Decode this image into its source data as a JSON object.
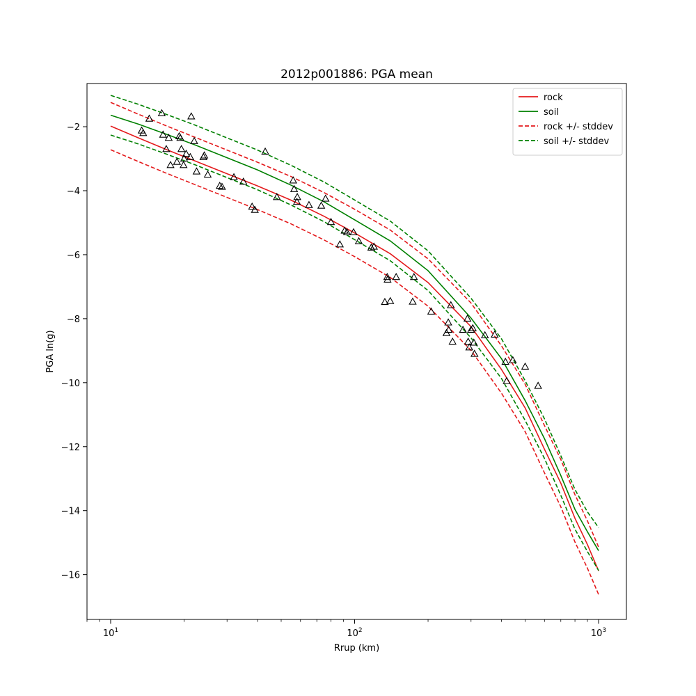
{
  "chart_data": {
    "type": "scatter",
    "title": "2012p001886: PGA mean",
    "xlabel": "Rrup (km)",
    "ylabel": "PGA ln(g)",
    "x_scale": "log",
    "xlim": [
      8,
      1300
    ],
    "ylim": [
      -17.4,
      -0.65
    ],
    "grid": false,
    "legend_position": "top-right",
    "x_ticks": [
      {
        "value": 10,
        "base": "10",
        "exp": "1"
      },
      {
        "value": 100,
        "base": "10",
        "exp": "2"
      },
      {
        "value": 1000,
        "base": "10",
        "exp": "3"
      }
    ],
    "y_ticks": [
      {
        "value": -2,
        "label": "−2"
      },
      {
        "value": -4,
        "label": "−4"
      },
      {
        "value": -6,
        "label": "−6"
      },
      {
        "value": -8,
        "label": "−8"
      },
      {
        "value": -10,
        "label": "−10"
      },
      {
        "value": -12,
        "label": "−12"
      },
      {
        "value": -14,
        "label": "−14"
      },
      {
        "value": -16,
        "label": "−16"
      }
    ],
    "series": [
      {
        "name": "rock",
        "color": "#e41a1c",
        "dash": false,
        "x": [
          10,
          13,
          17,
          22,
          30,
          40,
          55,
          75,
          100,
          140,
          200,
          300,
          400,
          500,
          600,
          700,
          800,
          900,
          1000
        ],
        "y": [
          -1.98,
          -2.35,
          -2.72,
          -3.06,
          -3.47,
          -3.85,
          -4.3,
          -4.8,
          -5.32,
          -5.97,
          -6.87,
          -8.25,
          -9.59,
          -10.79,
          -12.08,
          -13.14,
          -14.24,
          -15.06,
          -15.88
        ]
      },
      {
        "name": "soil",
        "color": "#008000",
        "dash": false,
        "x": [
          10,
          13,
          17,
          22,
          30,
          40,
          55,
          75,
          100,
          140,
          200,
          300,
          400,
          500,
          600,
          700,
          800,
          900,
          1000
        ],
        "y": [
          -1.64,
          -1.92,
          -2.24,
          -2.56,
          -2.97,
          -3.35,
          -3.83,
          -4.35,
          -4.91,
          -5.57,
          -6.5,
          -7.98,
          -9.25,
          -10.56,
          -11.75,
          -12.9,
          -13.96,
          -14.66,
          -15.25
        ]
      },
      {
        "name": "rock +/- stddev",
        "color": "#e41a1c",
        "dash": true,
        "x": [
          10,
          13,
          17,
          22,
          30,
          40,
          55,
          75,
          100,
          140,
          200,
          300,
          400,
          500,
          600,
          700,
          800,
          900,
          1000
        ],
        "y": [
          -1.24,
          -1.61,
          -1.98,
          -2.32,
          -2.73,
          -3.11,
          -3.56,
          -4.06,
          -4.58,
          -5.23,
          -6.13,
          -7.51,
          -8.85,
          -10.05,
          -11.34,
          -12.4,
          -13.5,
          -14.32,
          -15.14
        ]
      },
      {
        "name": "rock +/- stddev",
        "color": "#e41a1c",
        "dash": true,
        "legend": false,
        "x": [
          10,
          13,
          17,
          22,
          30,
          40,
          55,
          75,
          100,
          140,
          200,
          300,
          400,
          500,
          600,
          700,
          800,
          900,
          1000
        ],
        "y": [
          -2.72,
          -3.09,
          -3.46,
          -3.8,
          -4.21,
          -4.59,
          -5.04,
          -5.54,
          -6.06,
          -6.71,
          -7.61,
          -8.99,
          -10.33,
          -11.53,
          -12.82,
          -13.88,
          -14.98,
          -15.8,
          -16.62
        ]
      },
      {
        "name": "soil +/- stddev",
        "color": "#008000",
        "dash": true,
        "x": [
          10,
          13,
          17,
          22,
          30,
          40,
          55,
          75,
          100,
          140,
          200,
          300,
          400,
          500,
          600,
          700,
          800,
          900,
          1000
        ],
        "y": [
          -1.02,
          -1.3,
          -1.62,
          -1.94,
          -2.35,
          -2.73,
          -3.21,
          -3.73,
          -4.29,
          -4.95,
          -5.88,
          -7.36,
          -8.63,
          -9.94,
          -11.13,
          -12.28,
          -13.34,
          -14.04,
          -14.53
        ]
      },
      {
        "name": "soil +/- stddev",
        "color": "#008000",
        "dash": true,
        "legend": false,
        "x": [
          10,
          13,
          17,
          22,
          30,
          40,
          55,
          75,
          100,
          140,
          200,
          300,
          400,
          500,
          600,
          700,
          800,
          900,
          1000
        ],
        "y": [
          -2.26,
          -2.54,
          -2.86,
          -3.18,
          -3.59,
          -3.97,
          -4.45,
          -4.97,
          -5.53,
          -6.19,
          -7.12,
          -8.6,
          -9.87,
          -11.18,
          -12.37,
          -13.52,
          -14.58,
          -15.28,
          -15.87
        ]
      }
    ],
    "observations": {
      "marker": "triangle",
      "x": [
        13.4,
        13.6,
        14.4,
        16.2,
        16.4,
        16.9,
        17.3,
        17.6,
        18.7,
        19.1,
        19.3,
        19.5,
        19.9,
        20.0,
        20.4,
        21.2,
        21.4,
        22.0,
        22.5,
        24.0,
        24.2,
        25.0,
        28.0,
        28.6,
        32.0,
        35.0,
        38.0,
        39.0,
        43.0,
        48.0,
        56.0,
        56.5,
        58.0,
        58.2,
        65.0,
        73.0,
        76.0,
        80.0,
        87.0,
        91.0,
        93.0,
        99.0,
        104.0,
        117.0,
        120.0,
        133.0,
        136.0,
        136.5,
        140.0,
        148.0,
        173.0,
        175.0,
        206.0,
        238.0,
        242.0,
        243.0,
        248.0,
        252.0,
        278.0,
        290.0,
        292.0,
        295.0,
        300.0,
        305.0,
        308.0,
        310.0,
        342.0,
        375.0,
        415.0,
        420.0,
        445.0,
        500.0,
        565.0
      ],
      "y": [
        -2.12,
        -2.2,
        -1.75,
        -1.58,
        -2.25,
        -2.7,
        -2.35,
        -3.2,
        -3.1,
        -2.3,
        -2.35,
        -2.7,
        -3.2,
        -3.0,
        -2.85,
        -2.95,
        -1.68,
        -2.45,
        -3.4,
        -2.95,
        -2.9,
        -3.5,
        -3.85,
        -3.88,
        -3.58,
        -3.72,
        -4.5,
        -4.6,
        -2.78,
        -4.2,
        -3.68,
        -3.95,
        -4.35,
        -4.2,
        -4.45,
        -4.47,
        -4.25,
        -4.98,
        -5.68,
        -5.25,
        -5.3,
        -5.3,
        -5.58,
        -5.78,
        -5.75,
        -7.48,
        -6.7,
        -6.78,
        -7.45,
        -6.7,
        -7.47,
        -6.7,
        -7.78,
        -8.45,
        -8.12,
        -8.35,
        -7.58,
        -8.72,
        -8.35,
        -8.0,
        -8.72,
        -8.9,
        -8.35,
        -8.3,
        -8.75,
        -9.1,
        -8.52,
        -8.5,
        -9.35,
        -9.95,
        -9.3,
        -9.5,
        -10.1
      ]
    }
  }
}
